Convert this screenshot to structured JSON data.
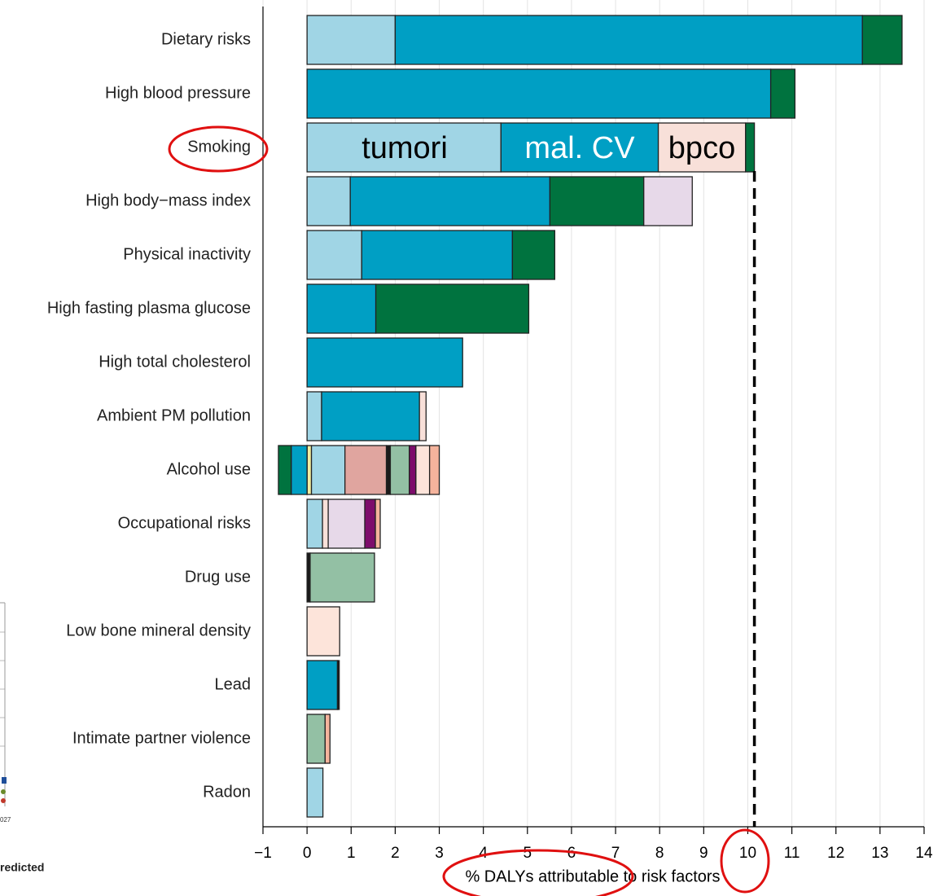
{
  "chart_data": {
    "type": "stacked_barh",
    "categories": [
      "Dietary risks",
      "High blood pressure",
      "Smoking",
      "High body−mass index",
      "Physical inactivity",
      "High fasting plasma glucose",
      "High total cholesterol",
      "Ambient PM pollution",
      "Alcohol use",
      "Occupational risks",
      "Drug use",
      "Low bone mineral density",
      "Lead",
      "Intimate partner violence",
      "Radon"
    ],
    "series": [
      {
        "color": "#f3eea0",
        "values": [
          null,
          null,
          null,
          null,
          null,
          null,
          null,
          null,
          0.1,
          null,
          null,
          null,
          null,
          null,
          null
        ]
      },
      {
        "color": "#a0d5e5",
        "values": [
          2.0,
          null,
          4.4,
          0.98,
          1.24,
          null,
          null,
          0.33,
          0.76,
          0.35,
          null,
          null,
          null,
          null,
          0.36
        ]
      },
      {
        "color": "#009fc4",
        "values": [
          10.6,
          10.52,
          3.57,
          4.53,
          3.42,
          1.56,
          3.53,
          2.22,
          -0.36,
          null,
          null,
          null,
          0.69,
          null,
          null
        ]
      },
      {
        "color": "#f8e0d9",
        "values": [
          null,
          null,
          1.98,
          null,
          null,
          null,
          null,
          0.15,
          null,
          0.13,
          null,
          null,
          null,
          null,
          null
        ]
      },
      {
        "color": "#00733f",
        "values": [
          0.9,
          0.55,
          0.2,
          2.13,
          0.96,
          3.47,
          null,
          null,
          -0.29,
          null,
          null,
          null,
          null,
          null,
          null
        ]
      },
      {
        "color": "#e7d9e9",
        "values": [
          null,
          null,
          null,
          1.1,
          null,
          null,
          null,
          null,
          null,
          0.83,
          null,
          null,
          null,
          null,
          null
        ]
      },
      {
        "color": "#e0a59f",
        "values": [
          null,
          null,
          null,
          null,
          null,
          null,
          null,
          null,
          0.94,
          null,
          null,
          null,
          null,
          null,
          null
        ]
      },
      {
        "color": "#1a1a1a",
        "values": [
          null,
          null,
          null,
          null,
          null,
          null,
          null,
          null,
          0.09,
          null,
          0.07,
          null,
          0.04,
          null,
          null
        ]
      },
      {
        "color": "#93c0a4",
        "values": [
          null,
          null,
          null,
          null,
          null,
          null,
          null,
          null,
          0.43,
          null,
          1.46,
          null,
          null,
          0.41,
          null
        ]
      },
      {
        "color": "#7d0c6b",
        "values": [
          null,
          null,
          null,
          null,
          null,
          null,
          null,
          null,
          0.15,
          0.24,
          null,
          null,
          null,
          null,
          null
        ]
      },
      {
        "color": "#fde4da",
        "values": [
          null,
          null,
          null,
          null,
          null,
          null,
          null,
          null,
          0.31,
          null,
          null,
          0.74,
          null,
          null,
          null
        ]
      },
      {
        "color": "#f4b39c",
        "values": [
          null,
          null,
          null,
          null,
          null,
          null,
          null,
          null,
          0.22,
          0.11,
          null,
          null,
          null,
          0.11,
          null
        ]
      }
    ],
    "xlabel": "% DALYs attributable to risk factors",
    "xlim": [
      -1,
      14
    ],
    "xticks": [
      {
        "value": -1,
        "label": "−1"
      },
      0,
      1,
      2,
      3,
      4,
      5,
      6,
      7,
      8,
      9,
      10,
      11,
      12,
      13,
      14
    ],
    "grid": true,
    "reference_line": 10.15,
    "annotations": [
      "tumori",
      "mal. CV",
      "bpco"
    ],
    "inset_labels": [
      "027",
      "redicted"
    ]
  }
}
